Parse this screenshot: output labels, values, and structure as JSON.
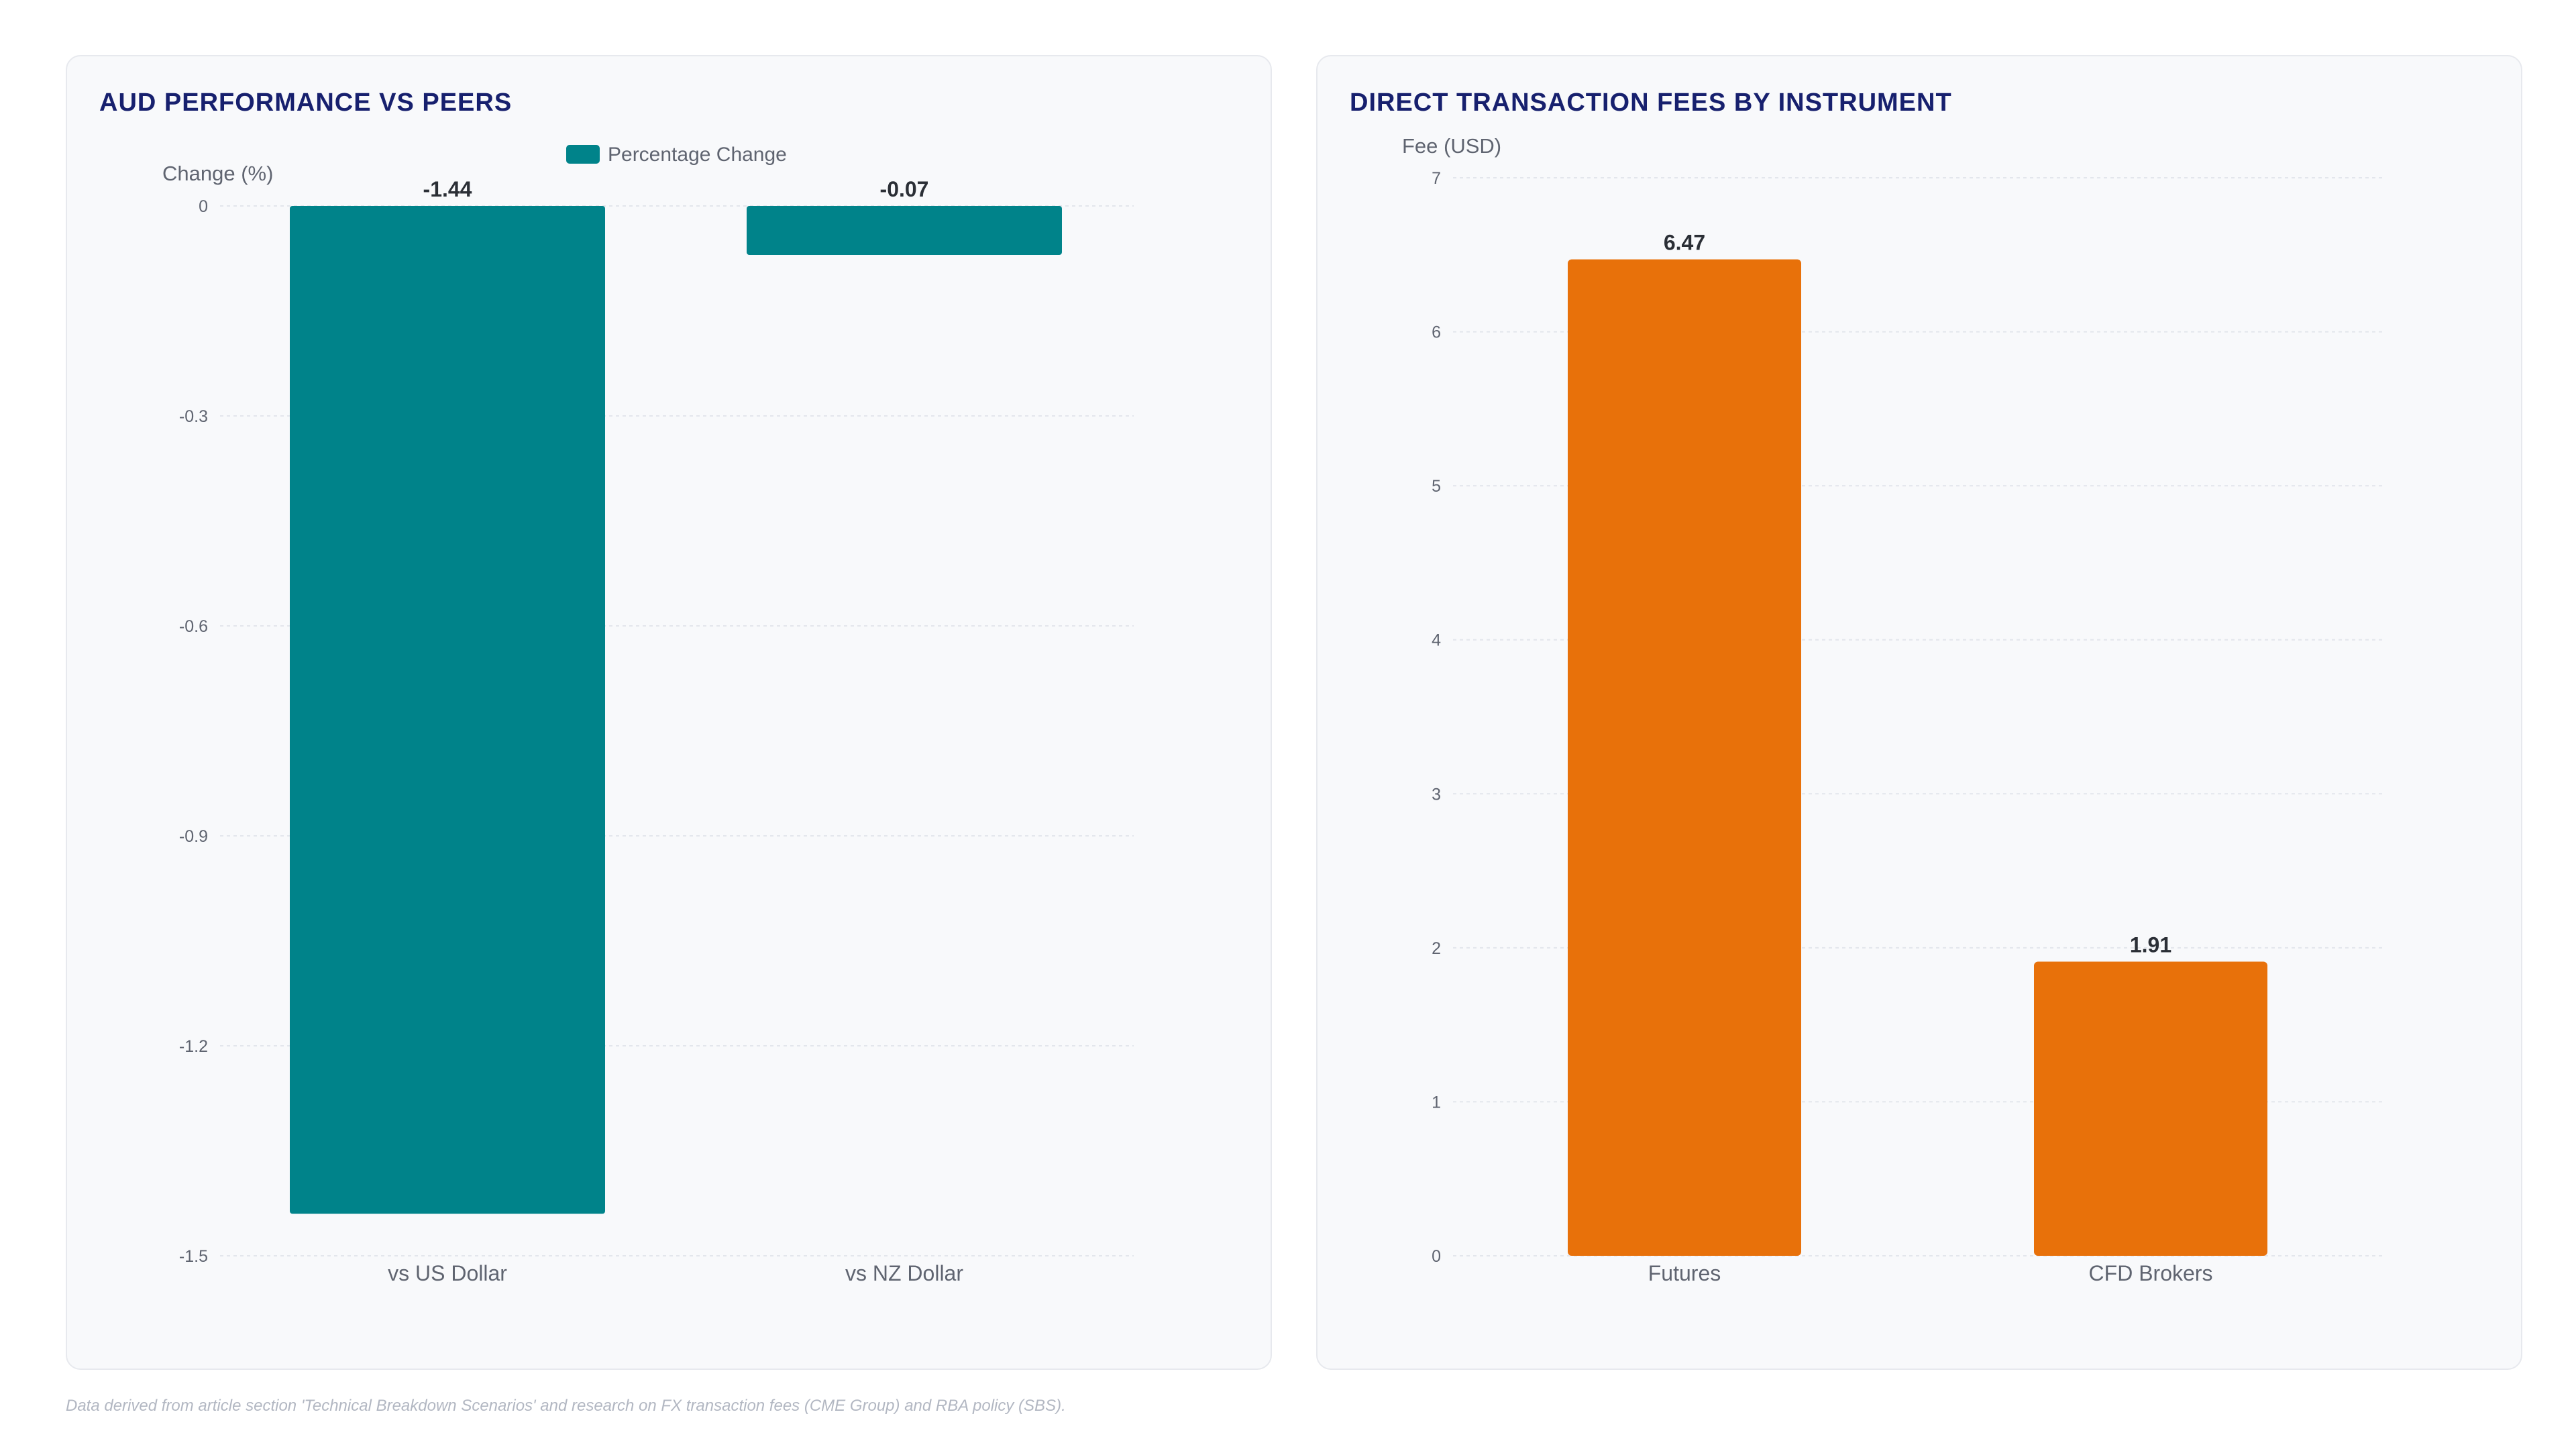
{
  "footer_note": "Data derived from article section 'Technical Breakdown Scenarios' and research on FX transaction fees (CME Group) and RBA policy (SBS).",
  "chart_data": [
    {
      "type": "bar",
      "title": "AUD PERFORMANCE VS PEERS",
      "ylabel": "Change (%)",
      "xlabel": "",
      "categories": [
        "vs US Dollar",
        "vs NZ Dollar"
      ],
      "series": [
        {
          "name": "Percentage Change",
          "values": [
            -1.44,
            -0.07
          ],
          "color": "#00838a"
        }
      ],
      "data_labels": [
        "-1.44",
        "-0.07"
      ],
      "ylim": [
        -1.5,
        0
      ],
      "yticks": [
        0,
        -0.3,
        -0.6,
        -0.9,
        -1.2,
        -1.5
      ],
      "ytick_labels": [
        "0",
        "-0.3",
        "-0.6",
        "-0.9",
        "-1.2",
        "-1.5"
      ],
      "grid": true,
      "legend": "top-center"
    },
    {
      "type": "bar",
      "title": "DIRECT TRANSACTION FEES BY INSTRUMENT",
      "ylabel": "Fee (USD)",
      "xlabel": "",
      "categories": [
        "Futures",
        "CFD Brokers"
      ],
      "series": [
        {
          "values": [
            6.47,
            1.91
          ],
          "color": "#e8710a"
        }
      ],
      "data_labels": [
        "6.47",
        "1.91"
      ],
      "ylim": [
        0,
        7
      ],
      "yticks": [
        0,
        1,
        2,
        3,
        4,
        5,
        6,
        7
      ],
      "ytick_labels": [
        "0",
        "1",
        "2",
        "3",
        "4",
        "5",
        "6",
        "7"
      ],
      "grid": true,
      "legend": "none"
    }
  ]
}
